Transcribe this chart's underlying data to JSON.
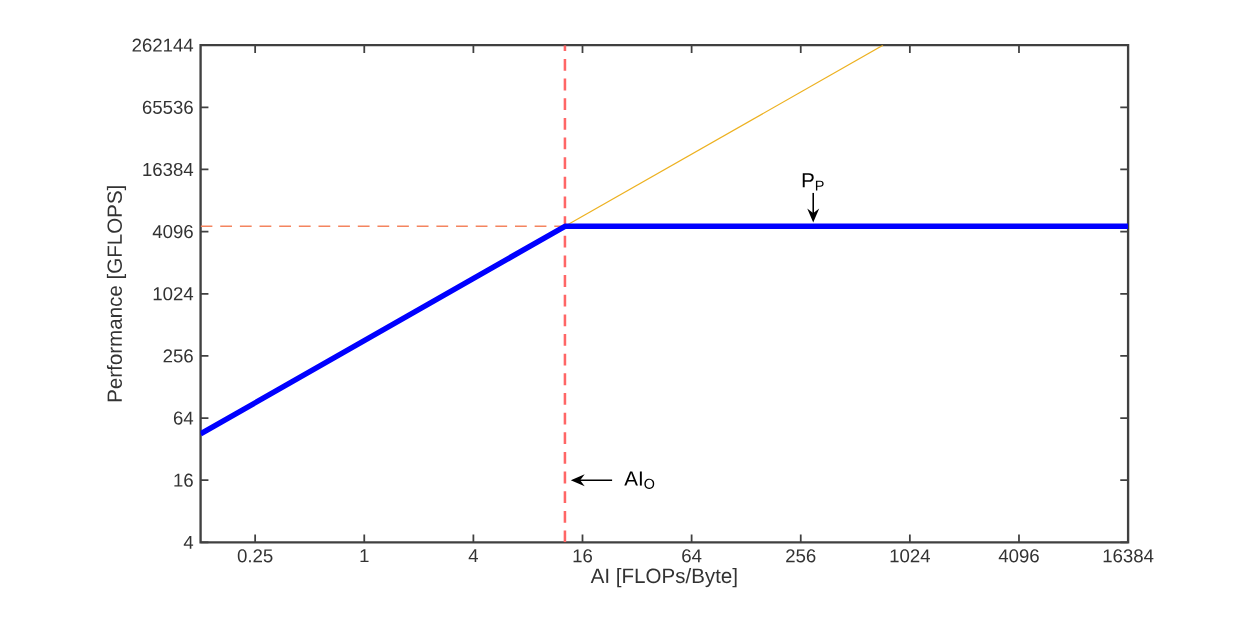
{
  "chart_data": {
    "type": "line",
    "xlabel": "AI [FLOPs/Byte]",
    "ylabel": "Performance [GFLOPS]",
    "log": "xy",
    "grid": false,
    "marker": "none",
    "xlim": [
      0.125,
      16384
    ],
    "ylim": [
      4,
      262144
    ],
    "xticks": [
      0.25,
      1,
      4,
      16,
      64,
      256,
      1024,
      4096,
      16384
    ],
    "yticks": [
      4,
      16,
      64,
      256,
      1024,
      4096,
      16384,
      65536,
      262144
    ],
    "series": [
      {
        "color": "#0000ff",
        "x": [
          0.125,
          12.8,
          16384
        ],
        "values": [
          45,
          4608,
          4608
        ],
        "line_style": "solid"
      },
      {
        "color": "#edb120",
        "x": [
          12.8,
          728
        ],
        "values": [
          4608,
          262144
        ],
        "line_style": "solid"
      },
      {
        "color": "#f4845f",
        "x": [
          0.125,
          12.8
        ],
        "values": [
          4608,
          4608
        ],
        "line_style": "dashed"
      }
    ],
    "ref_lines": [
      {
        "axis": "x",
        "value": 12.8,
        "color": "#ff6666",
        "line_style": "dashed"
      }
    ],
    "annotations": [
      {
        "text": "P$_{P}$",
        "x": 300,
        "y": 4608
      },
      {
        "text": "AI$_{O}$",
        "x": 12.8,
        "y": 16
      }
    ]
  }
}
